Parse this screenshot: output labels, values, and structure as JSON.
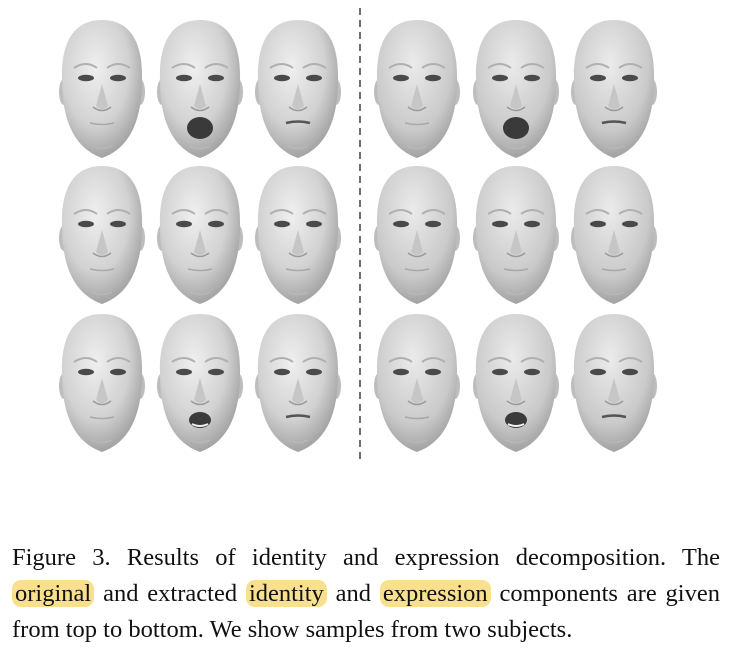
{
  "figure": {
    "subjects": [
      {
        "rows": [
          {
            "component": "original",
            "faces": [
              {
                "mouth": "closed"
              },
              {
                "mouth": "open-wide"
              },
              {
                "mouth": "slight"
              }
            ]
          },
          {
            "component": "identity",
            "faces": [
              {
                "mouth": "closed"
              },
              {
                "mouth": "closed"
              },
              {
                "mouth": "closed"
              }
            ]
          },
          {
            "component": "expression",
            "faces": [
              {
                "mouth": "closed"
              },
              {
                "mouth": "open-medium"
              },
              {
                "mouth": "slight"
              }
            ]
          }
        ]
      },
      {
        "rows": [
          {
            "component": "original",
            "faces": [
              {
                "mouth": "closed"
              },
              {
                "mouth": "open-wide"
              },
              {
                "mouth": "slight"
              }
            ]
          },
          {
            "component": "identity",
            "faces": [
              {
                "mouth": "closed"
              },
              {
                "mouth": "closed"
              },
              {
                "mouth": "closed"
              }
            ]
          },
          {
            "component": "expression",
            "faces": [
              {
                "mouth": "closed"
              },
              {
                "mouth": "open-medium"
              },
              {
                "mouth": "slight"
              }
            ]
          }
        ]
      }
    ],
    "colors": {
      "face_light": "#e6e6e6",
      "face_mid": "#bdbdbd",
      "face_dark": "#8a8a8a",
      "eye": "#4a4a4a",
      "mouth": "#3a3a3a",
      "highlight": "#f8e08e"
    }
  },
  "caption": {
    "prefix": "Figure 3. Results of identity and expression decomposition.  The",
    "word_original": "original",
    "mid1": "and extracted",
    "word_identity": "identity",
    "mid2": "and",
    "word_expression": "expression",
    "suffix": "components are given from top to bottom. We show samples from two subjects."
  }
}
